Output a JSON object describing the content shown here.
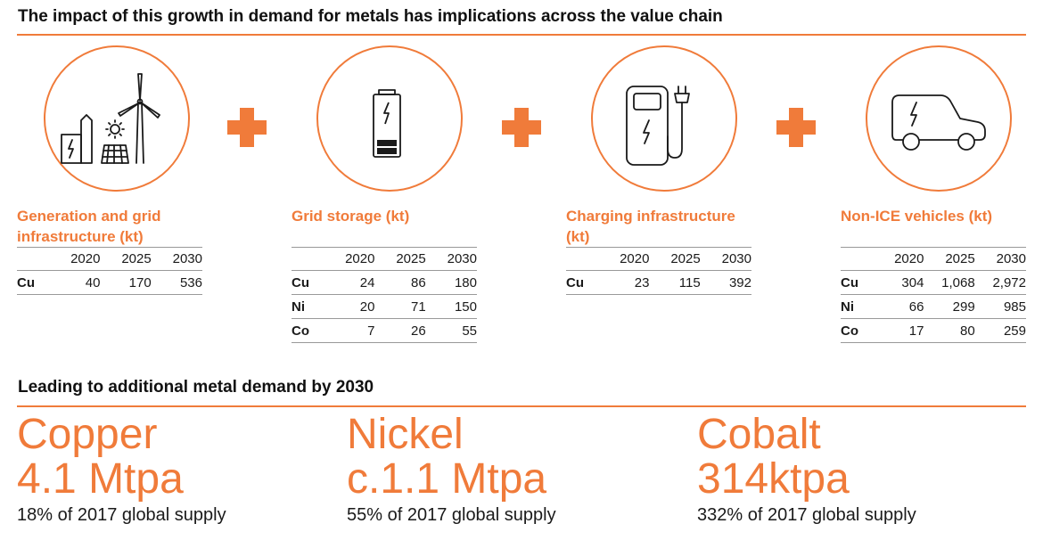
{
  "header": {
    "title": "The impact of this growth in demand for metals has implications across the value chain"
  },
  "accent_color": "#f07b3a",
  "segments": [
    {
      "icon": "wind-solar-power-icon",
      "title": "Generation and grid infrastructure (kt)",
      "columns": [
        "2020",
        "2025",
        "2030"
      ],
      "rows": [
        {
          "metal": "Cu",
          "values": [
            "40",
            "170",
            "536"
          ]
        }
      ]
    },
    {
      "icon": "battery-icon",
      "title": "Grid storage (kt)",
      "columns": [
        "2020",
        "2025",
        "2030"
      ],
      "rows": [
        {
          "metal": "Cu",
          "values": [
            "24",
            "86",
            "180"
          ]
        },
        {
          "metal": "Ni",
          "values": [
            "20",
            "71",
            "150"
          ]
        },
        {
          "metal": "Co",
          "values": [
            "7",
            "26",
            "55"
          ]
        }
      ]
    },
    {
      "icon": "charging-station-icon",
      "title": "Charging infrastructure (kt)",
      "columns": [
        "2020",
        "2025",
        "2030"
      ],
      "rows": [
        {
          "metal": "Cu",
          "values": [
            "23",
            "115",
            "392"
          ]
        }
      ]
    },
    {
      "icon": "electric-car-icon",
      "title": "Non-ICE vehicles (kt)",
      "columns": [
        "2020",
        "2025",
        "2030"
      ],
      "rows": [
        {
          "metal": "Cu",
          "values": [
            "304",
            "1,068",
            "2,972"
          ]
        },
        {
          "metal": "Ni",
          "values": [
            "66",
            "299",
            "985"
          ]
        },
        {
          "metal": "Co",
          "values": [
            "17",
            "80",
            "259"
          ]
        }
      ]
    }
  ],
  "demand": {
    "title": "Leading to additional metal demand by 2030",
    "metals": [
      {
        "name": "Copper",
        "amount": "4.1 Mtpa",
        "supply": "18% of 2017 global supply"
      },
      {
        "name": "Nickel",
        "amount": "c.1.1 Mtpa",
        "supply": "55% of 2017 global supply"
      },
      {
        "name": "Cobalt",
        "amount": "314ktpa",
        "supply": "332% of 2017 global supply"
      }
    ]
  }
}
